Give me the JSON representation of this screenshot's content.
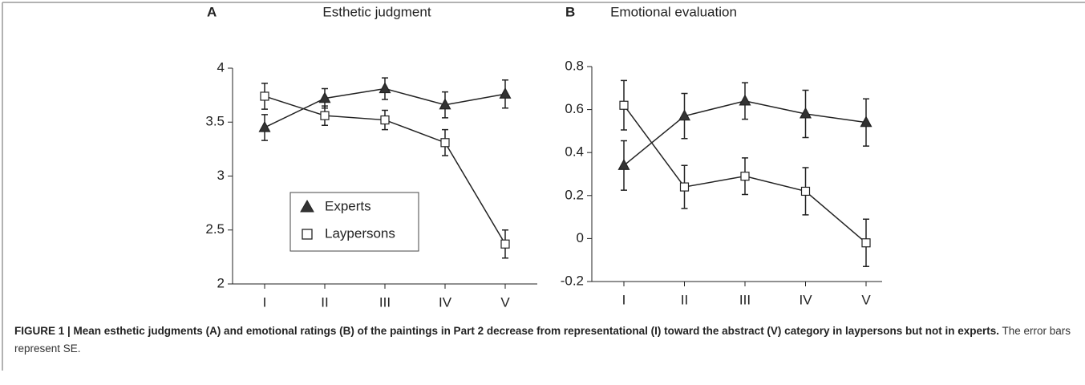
{
  "chart_data": [
    {
      "type": "line",
      "panel": "A",
      "title": "Esthetic judgment",
      "categories": [
        "I",
        "II",
        "III",
        "IV",
        "V"
      ],
      "series": [
        {
          "name": "Experts",
          "marker": "triangle",
          "color": "#333333",
          "values": [
            3.45,
            3.72,
            3.81,
            3.66,
            3.76
          ],
          "errors": [
            0.12,
            0.09,
            0.1,
            0.12,
            0.13
          ]
        },
        {
          "name": "Laypersons",
          "marker": "square",
          "color": "#ffffff",
          "values": [
            3.74,
            3.56,
            3.52,
            3.31,
            2.37
          ],
          "errors": [
            0.12,
            0.09,
            0.09,
            0.12,
            0.13
          ]
        }
      ],
      "ylim": [
        2,
        4
      ],
      "yticks": [
        2,
        2.5,
        3,
        3.5,
        4
      ],
      "legend": true
    },
    {
      "type": "line",
      "panel": "B",
      "title": "Emotional evaluation",
      "categories": [
        "I",
        "II",
        "III",
        "IV",
        "V"
      ],
      "series": [
        {
          "marker": "triangle",
          "color": "#333333",
          "values": [
            0.34,
            0.57,
            0.64,
            0.58,
            0.54
          ],
          "errors": [
            0.115,
            0.105,
            0.085,
            0.11,
            0.11
          ]
        },
        {
          "marker": "square",
          "color": "#ffffff",
          "values": [
            0.62,
            0.24,
            0.29,
            0.22,
            -0.02
          ],
          "errors": [
            0.115,
            0.1,
            0.085,
            0.11,
            0.11
          ]
        }
      ],
      "ylim": [
        -0.2,
        0.8
      ],
      "yticks": [
        -0.2,
        0,
        0.2,
        0.4,
        0.6,
        0.8
      ],
      "legend": false
    }
  ],
  "caption": {
    "bold": "FIGURE 1 | Mean esthetic judgments (A) and emotional ratings (B) of the paintings in Part 2 decrease from representational (I) toward the abstract (V) category in laypersons but not in experts.",
    "text": "The error bars represent SE."
  }
}
